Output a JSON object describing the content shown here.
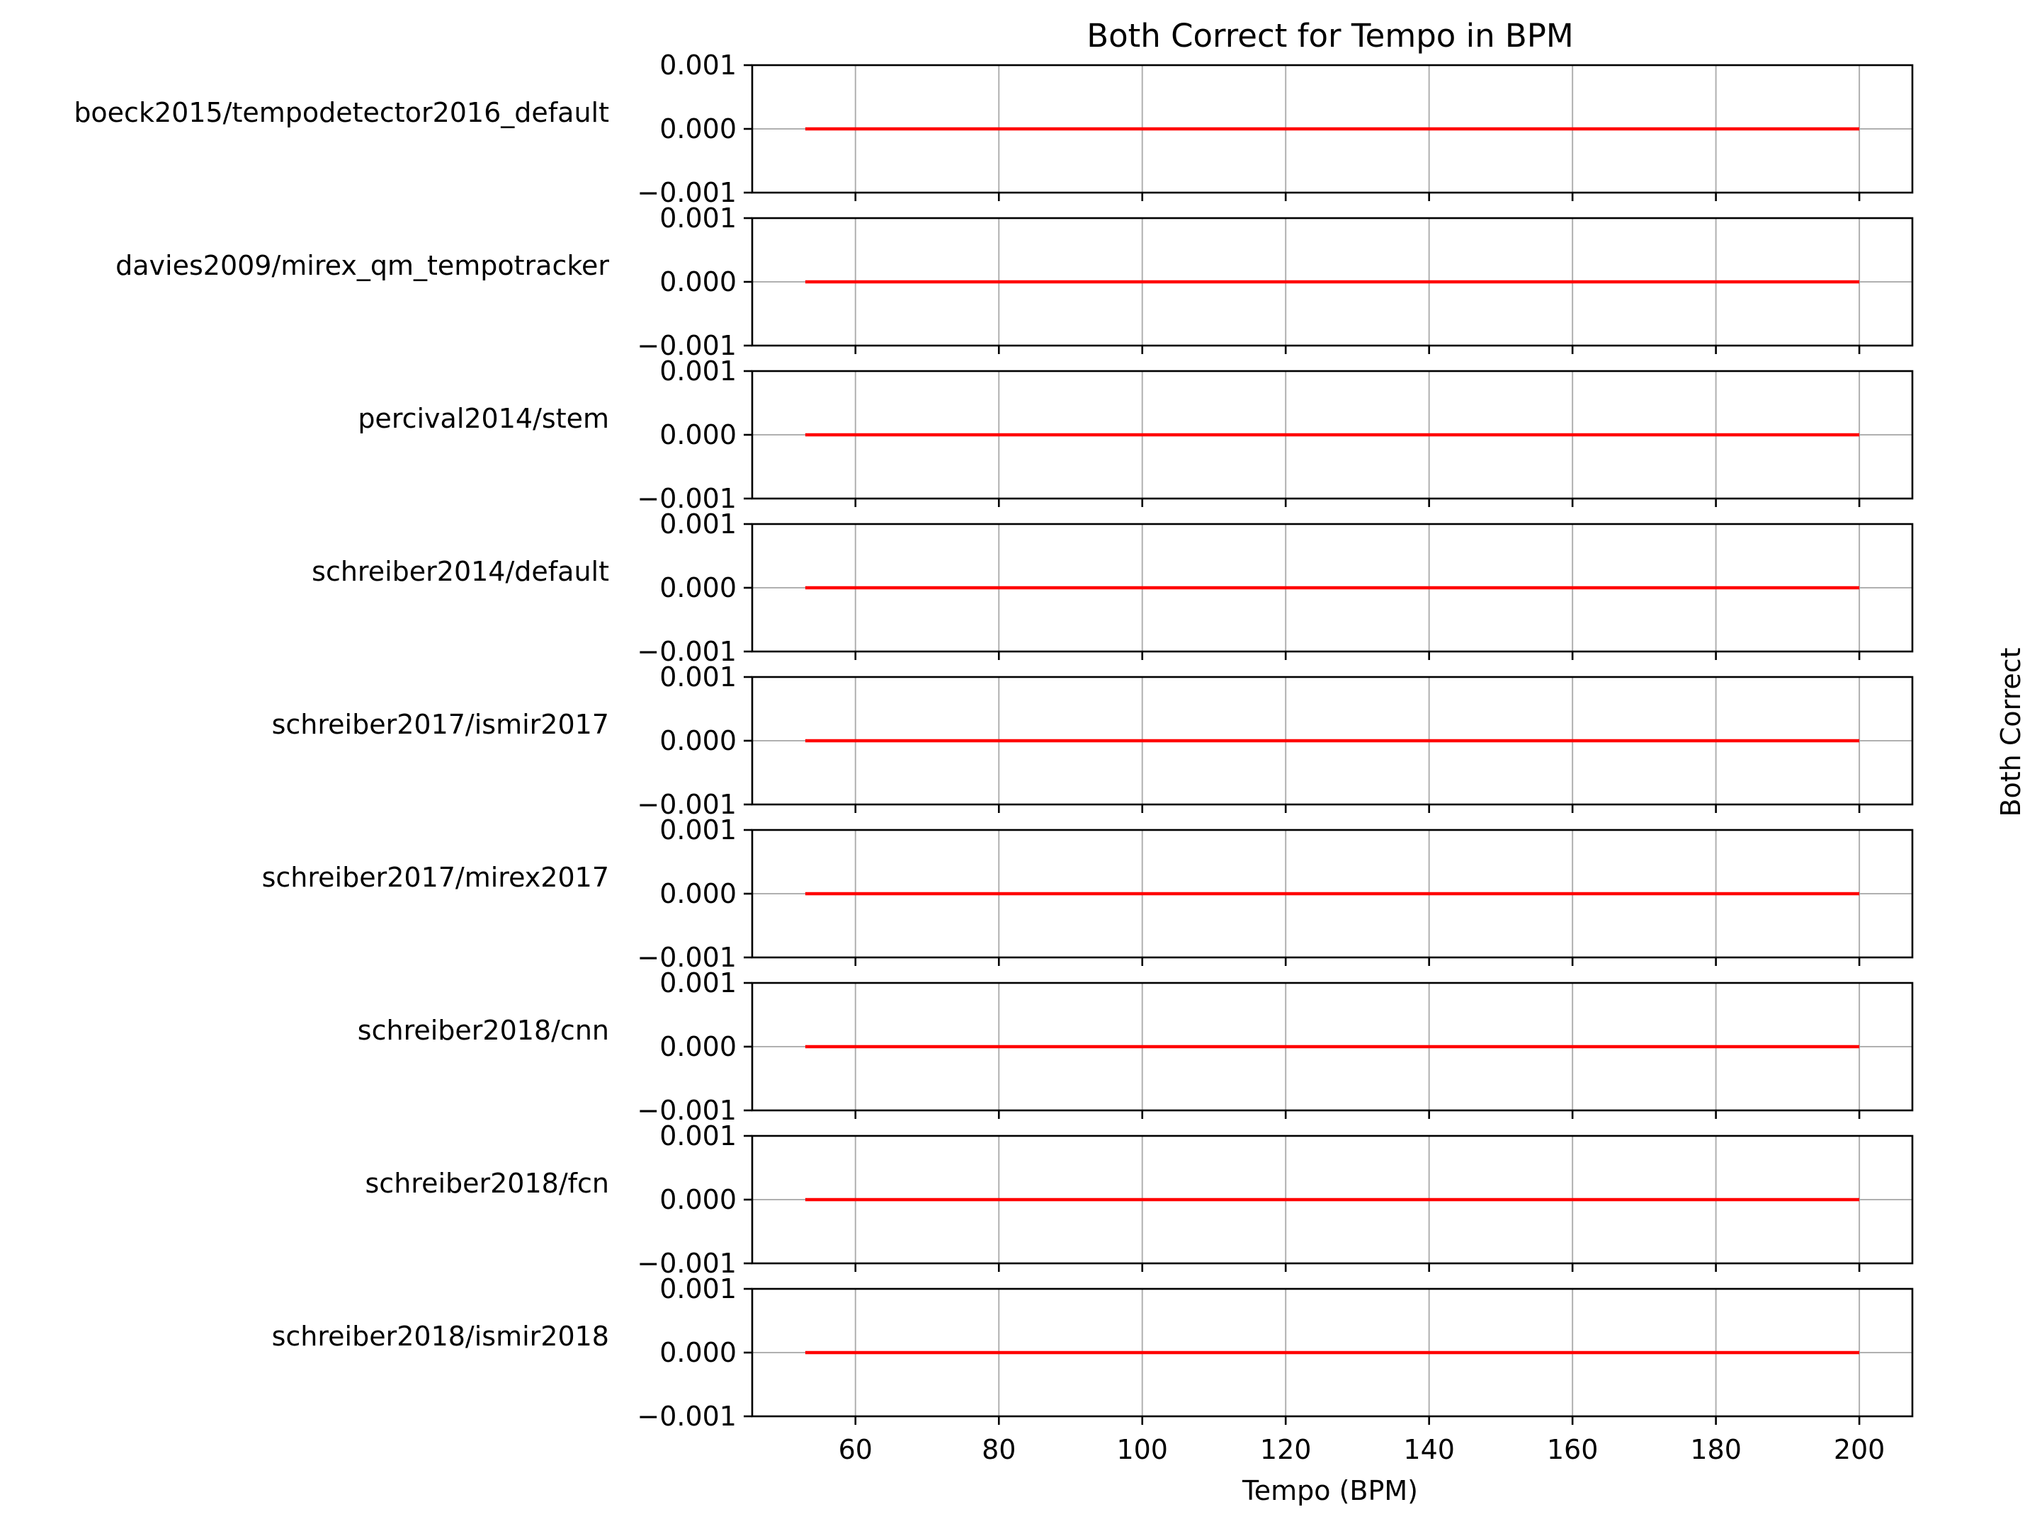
{
  "chart_data": {
    "type": "line",
    "title": "Both Correct for Tempo in BPM",
    "xlabel": "Tempo (BPM)",
    "ylabel": "Both Correct",
    "xlim": [
      45.6,
      207.4
    ],
    "ylim": [
      -0.001,
      0.001
    ],
    "x_ticks": [
      60,
      80,
      100,
      120,
      140,
      160,
      180,
      200
    ],
    "x_tick_labels": [
      "60",
      "80",
      "100",
      "120",
      "140",
      "160",
      "180",
      "200"
    ],
    "y_ticks": [
      0.001,
      0.0,
      -0.001
    ],
    "y_tick_labels": [
      "0.001",
      "0.000",
      "−0.001"
    ],
    "grid": true,
    "line_color": "#ff0000",
    "x": [
      53,
      200
    ],
    "series": [
      {
        "name": "boeck2015/tempodetector2016_default",
        "values": [
          0,
          0
        ]
      },
      {
        "name": "davies2009/mirex_qm_tempotracker",
        "values": [
          0,
          0
        ]
      },
      {
        "name": "percival2014/stem",
        "values": [
          0,
          0
        ]
      },
      {
        "name": "schreiber2014/default",
        "values": [
          0,
          0
        ]
      },
      {
        "name": "schreiber2017/ismir2017",
        "values": [
          0,
          0
        ]
      },
      {
        "name": "schreiber2017/mirex2017",
        "values": [
          0,
          0
        ]
      },
      {
        "name": "schreiber2018/cnn",
        "values": [
          0,
          0
        ]
      },
      {
        "name": "schreiber2018/fcn",
        "values": [
          0,
          0
        ]
      },
      {
        "name": "schreiber2018/ismir2018",
        "values": [
          0,
          0
        ]
      }
    ]
  }
}
